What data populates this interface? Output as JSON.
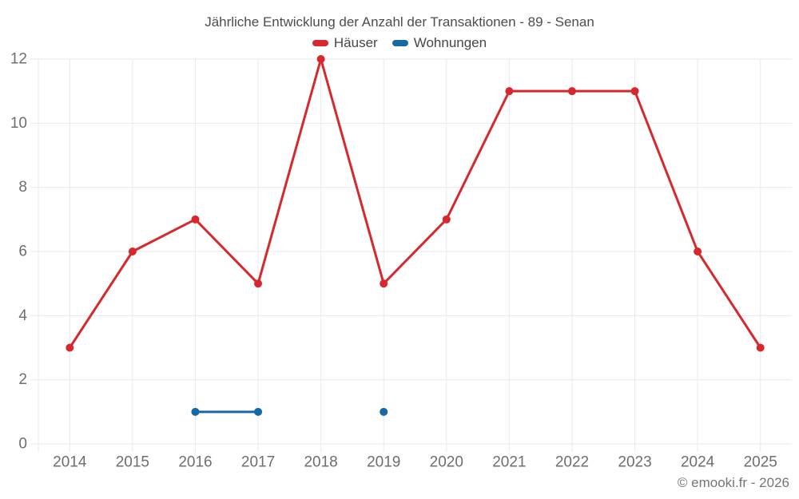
{
  "chart_data": {
    "type": "line",
    "title": "Jährliche Entwicklung der Anzahl der Transaktionen - 89 - Senan",
    "categories": [
      "2014",
      "2015",
      "2016",
      "2017",
      "2018",
      "2019",
      "2020",
      "2021",
      "2022",
      "2023",
      "2024",
      "2025"
    ],
    "series": [
      {
        "name": "Häuser",
        "color": "#d7282d",
        "values": [
          3,
          6,
          7,
          5,
          12,
          5,
          7,
          11,
          11,
          11,
          6,
          3
        ]
      },
      {
        "name": "Wohnungen",
        "color": "#1769a6",
        "values": [
          null,
          null,
          1,
          1,
          null,
          1,
          null,
          null,
          null,
          null,
          null,
          null
        ]
      }
    ],
    "ylim": [
      0,
      12
    ],
    "ytick_step": 2,
    "yticks": [
      0,
      2,
      4,
      6,
      8,
      10,
      12
    ],
    "grid": true,
    "legend_position": "top"
  },
  "footer": {
    "text": "© emooki.fr - 2026"
  },
  "colors": {
    "grid": "#e9e9e9",
    "axis_text": "#6e6e6e",
    "title_text": "#4d4d4d",
    "footer_text": "#757575",
    "background": "#ffffff"
  }
}
